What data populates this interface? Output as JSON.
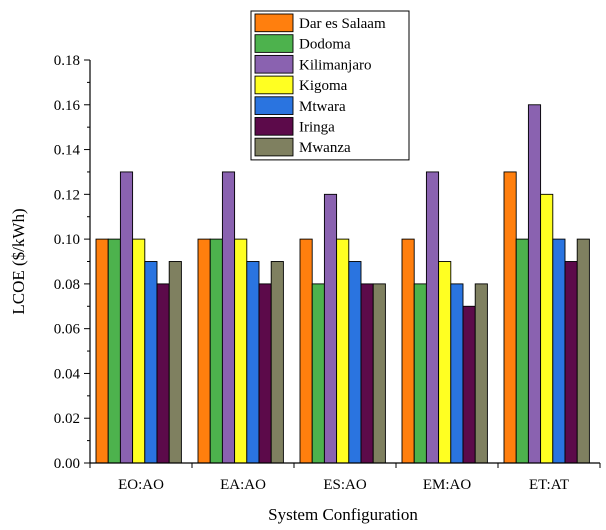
{
  "chart_data": {
    "type": "bar",
    "xlabel": "System Configuration",
    "ylabel": "LCOE ($/kWh)",
    "ylim": [
      0,
      0.18
    ],
    "y_ticks": [
      "0.00",
      "0.02",
      "0.04",
      "0.06",
      "0.08",
      "0.10",
      "0.12",
      "0.14",
      "0.16",
      "0.18"
    ],
    "grid": false,
    "legend_position": "top-center",
    "categories": [
      "EO:AO",
      "EA:AO",
      "ES:AO",
      "EM:AO",
      "ET:AT"
    ],
    "series": [
      {
        "name": "Dar es Salaam",
        "color": "#ff7f0e",
        "values": [
          0.1,
          0.1,
          0.1,
          0.1,
          0.13
        ]
      },
      {
        "name": "Dodoma",
        "color": "#4db24d",
        "values": [
          0.1,
          0.1,
          0.08,
          0.08,
          0.1
        ]
      },
      {
        "name": "Kilimanjaro",
        "color": "#8a62b0",
        "values": [
          0.13,
          0.13,
          0.12,
          0.13,
          0.16
        ]
      },
      {
        "name": "Kigoma",
        "color": "#ffff22",
        "values": [
          0.1,
          0.1,
          0.1,
          0.09,
          0.12
        ]
      },
      {
        "name": "Mtwara",
        "color": "#2a74e0",
        "values": [
          0.09,
          0.09,
          0.09,
          0.08,
          0.1
        ]
      },
      {
        "name": "Iringa",
        "color": "#5c0a4a",
        "values": [
          0.08,
          0.08,
          0.08,
          0.07,
          0.09
        ]
      },
      {
        "name": "Mwanza",
        "color": "#7f8060",
        "values": [
          0.09,
          0.09,
          0.08,
          0.08,
          0.1
        ]
      }
    ]
  }
}
